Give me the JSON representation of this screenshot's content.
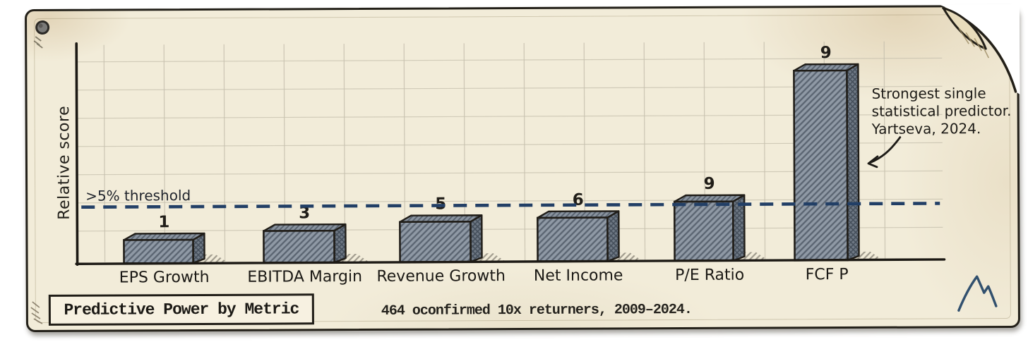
{
  "colors": {
    "paper": "#f2ecd9",
    "ink": "#201d18",
    "navy_accent": "#223f66",
    "bar_front": "#8f99a5",
    "bar_side": "#6f7985",
    "bar_top": "#89939f"
  },
  "icons": {
    "pin": "push-pin-icon",
    "page_curl": "page-curl",
    "logo": "mountain-logo"
  },
  "chart_data": {
    "type": "bar",
    "title": "Predictive Power by Metric",
    "caption": "464 oconfirmed 10x returners, 2009–2024.",
    "ylabel": "Relative score",
    "xlabel": "",
    "categories": [
      "EPS Growth",
      "EBITDA Margin",
      "Revenue Growth",
      "Net Income",
      "P/E Ratio",
      "FCF P"
    ],
    "values": [
      1,
      3,
      5,
      6,
      9,
      9
    ],
    "ylim": [
      0,
      10
    ],
    "grid": "on",
    "legend_position": "none",
    "threshold_line": {
      "label": ">5% threshold",
      "value": 5,
      "style": "dashed",
      "color": "#223f66"
    },
    "annotation": {
      "lines": [
        "Strongest single",
        "statistical predictor.",
        "Yartseva, 2024."
      ],
      "target": "FCF P"
    }
  }
}
